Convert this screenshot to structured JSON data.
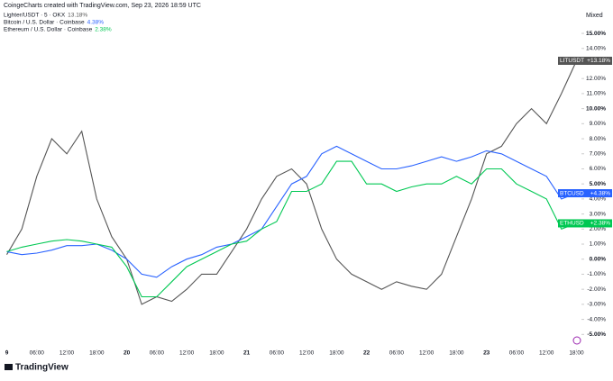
{
  "chart_data": {
    "type": "line",
    "header": "CoingeCharts created with TradingView.com, Sep 23, 2026 18:59 UTC",
    "scale_mode": "Mixed",
    "brand": "TradingView",
    "x": [
      0,
      3,
      6,
      9,
      12,
      15,
      18,
      21,
      24,
      27,
      30,
      33,
      36,
      39,
      42,
      45,
      48,
      51,
      54,
      57,
      60,
      63,
      66,
      69,
      72,
      75,
      78,
      81,
      84,
      87,
      90,
      93,
      96,
      99,
      102,
      105,
      108,
      111,
      114
    ],
    "xlim": [
      -1,
      115
    ],
    "xticks": [
      {
        "value": 0,
        "label": "9"
      },
      {
        "value": 6,
        "label": "06:00"
      },
      {
        "value": 12,
        "label": "12:00"
      },
      {
        "value": 18,
        "label": "18:00"
      },
      {
        "value": 24,
        "label": "20"
      },
      {
        "value": 30,
        "label": "06:00"
      },
      {
        "value": 36,
        "label": "12:00"
      },
      {
        "value": 42,
        "label": "18:00"
      },
      {
        "value": 48,
        "label": "21"
      },
      {
        "value": 54,
        "label": "06:00"
      },
      {
        "value": 60,
        "label": "12:00"
      },
      {
        "value": 66,
        "label": "18:00"
      },
      {
        "value": 72,
        "label": "22"
      },
      {
        "value": 78,
        "label": "06:00"
      },
      {
        "value": 84,
        "label": "12:00"
      },
      {
        "value": 90,
        "label": "18:00"
      },
      {
        "value": 96,
        "label": "23"
      },
      {
        "value": 102,
        "label": "06:00"
      },
      {
        "value": 108,
        "label": "12:00"
      },
      {
        "value": 114,
        "label": "18:00"
      }
    ],
    "ylim": [
      -6,
      16.5
    ],
    "yticks": [
      {
        "value": -5,
        "label": "-5.00%"
      },
      {
        "value": -4,
        "label": "-4.00%"
      },
      {
        "value": -3,
        "label": "-3.00%"
      },
      {
        "value": -2,
        "label": "-2.00%"
      },
      {
        "value": -1,
        "label": "-1.00%"
      },
      {
        "value": 0,
        "label": "0.00%"
      },
      {
        "value": 1,
        "label": "1.00%"
      },
      {
        "value": 2,
        "label": "2.00%"
      },
      {
        "value": 3,
        "label": "3.00%"
      },
      {
        "value": 4,
        "label": "4.00%"
      },
      {
        "value": 5,
        "label": "5.00%"
      },
      {
        "value": 6,
        "label": "6.00%"
      },
      {
        "value": 7,
        "label": "7.00%"
      },
      {
        "value": 8,
        "label": "8.00%"
      },
      {
        "value": 9,
        "label": "9.00%"
      },
      {
        "value": 10,
        "label": "10.00%"
      },
      {
        "value": 11,
        "label": "11.00%"
      },
      {
        "value": 12,
        "label": "12.00%"
      },
      {
        "value": 13,
        "label": "13.00%"
      },
      {
        "value": 14,
        "label": "14.00%"
      },
      {
        "value": 15,
        "label": "15.00%"
      }
    ],
    "grid": false,
    "series": [
      {
        "name": "Lighter/USDT · 5 · OKX",
        "tag": "LITUSDT",
        "color": "#555555",
        "values": [
          0.3,
          2,
          5.5,
          8,
          7,
          8.5,
          4,
          1.5,
          0,
          -3,
          -2.5,
          -2.8,
          -2,
          -1,
          -1,
          0.5,
          2,
          4,
          5.5,
          6,
          5,
          2,
          0,
          -1,
          -1.5,
          -2,
          -1.5,
          -1.8,
          -2,
          -1,
          1.5,
          4,
          7,
          7.5,
          9,
          10,
          9,
          11,
          13.18
        ],
        "value_labels": {
          "38": "13.18%"
        },
        "tag_label": "+13.18%"
      },
      {
        "name": "Bitcoin / U.S. Dollar · Coinbase",
        "tag": "BTCUSD",
        "color": "#2962ff",
        "values": [
          0.5,
          0.3,
          0.4,
          0.6,
          0.9,
          0.9,
          1,
          0.6,
          0,
          -1,
          -1.2,
          -0.5,
          0,
          0.3,
          0.8,
          1,
          1.5,
          2,
          3.5,
          5,
          5.5,
          7,
          7.5,
          7,
          6.5,
          6,
          6,
          6.2,
          6.5,
          6.8,
          6.5,
          6.8,
          7.2,
          7,
          6.5,
          6,
          5.5,
          4,
          4.38
        ],
        "value_labels": {
          "38": "4.38%"
        },
        "tag_label": "+4.38%"
      },
      {
        "name": "Ethereum / U.S. Dollar · Coinbase",
        "tag": "ETHUSD",
        "color": "#00c853",
        "values": [
          0.5,
          0.8,
          1,
          1.2,
          1.3,
          1.2,
          1,
          0.8,
          -0.5,
          -2.5,
          -2.5,
          -1.5,
          -0.5,
          0,
          0.5,
          1,
          1.2,
          2,
          2.5,
          4.5,
          4.5,
          5,
          6.5,
          6.5,
          5,
          5,
          4.5,
          4.8,
          5,
          5,
          5.5,
          5,
          6,
          6,
          5,
          4.5,
          4,
          2,
          2.38
        ],
        "value_labels": {
          "38": "2.38%"
        },
        "tag_label": "+2.38%"
      }
    ]
  }
}
